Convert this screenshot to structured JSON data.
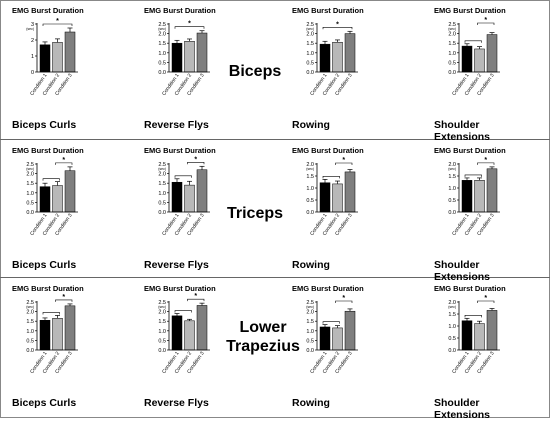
{
  "figure": {
    "panel_title": "EMG Burst Duration",
    "y_unit": "(sec)",
    "condition_labels": [
      "Condition 1",
      "Condition 2",
      "Condition 3"
    ],
    "bar_colors": [
      "#000000",
      "#b8b8b8",
      "#7f7f7f"
    ],
    "rows": [
      {
        "muscle_lines": [
          "Biceps"
        ],
        "panels": [
          {
            "exercise": [
              "Biceps Curls"
            ],
            "ylim": [
              0,
              3
            ],
            "yticks": [
              "0",
              "1",
              "2",
              "3"
            ],
            "values": [
              1.7,
              1.85,
              2.5
            ],
            "errors": [
              0.18,
              0.22,
              0.25
            ],
            "sig": [
              [
                0,
                2
              ]
            ]
          },
          {
            "exercise": [
              "Reverse Flys"
            ],
            "ylim": [
              0,
              2.5
            ],
            "yticks": [
              "0.0",
              "0.5",
              "1.0",
              "1.5",
              "2.0",
              "2.5"
            ],
            "values": [
              1.5,
              1.6,
              2.03
            ],
            "errors": [
              0.15,
              0.12,
              0.12
            ],
            "sig": [
              [
                0,
                2
              ]
            ]
          },
          {
            "exercise": [
              "Rowing"
            ],
            "ylim": [
              0,
              2.5
            ],
            "yticks": [
              "0.0",
              "0.5",
              "1.0",
              "1.5",
              "2.0",
              "2.5"
            ],
            "values": [
              1.45,
              1.55,
              2.0
            ],
            "errors": [
              0.15,
              0.12,
              0.12
            ],
            "sig": [
              [
                0,
                2
              ]
            ]
          },
          {
            "exercise": [
              "Shoulder",
              "Extensions"
            ],
            "ylim": [
              0,
              2.5
            ],
            "yticks": [
              "0.0",
              "0.5",
              "1.0",
              "1.5",
              "2.0",
              "2.5"
            ],
            "values": [
              1.35,
              1.2,
              1.95
            ],
            "errors": [
              0.12,
              0.12,
              0.1
            ],
            "sig": [
              [
                0,
                1
              ],
              [
                1,
                2
              ]
            ]
          }
        ]
      },
      {
        "muscle_lines": [
          "Triceps"
        ],
        "panels": [
          {
            "exercise": [
              "Biceps Curls"
            ],
            "ylim": [
              0,
              2.5
            ],
            "yticks": [
              "0.0",
              "0.5",
              "1.0",
              "1.5",
              "2.0",
              "2.5"
            ],
            "values": [
              1.32,
              1.38,
              2.15
            ],
            "errors": [
              0.18,
              0.2,
              0.2
            ],
            "sig": [
              [
                0,
                1
              ],
              [
                1,
                2
              ]
            ]
          },
          {
            "exercise": [
              "Reverse Flys"
            ],
            "ylim": [
              0,
              2.5
            ],
            "yticks": [
              "0.0",
              "0.5",
              "1.0",
              "1.5",
              "2.0",
              "2.5"
            ],
            "values": [
              1.55,
              1.4,
              2.2
            ],
            "errors": [
              0.18,
              0.2,
              0.18
            ],
            "sig": [
              [
                0,
                1
              ],
              [
                1,
                2
              ]
            ]
          },
          {
            "exercise": [
              "Rowing"
            ],
            "ylim": [
              0,
              2.0
            ],
            "yticks": [
              "0.0",
              "0.5",
              "1.0",
              "1.5",
              "2.0"
            ],
            "values": [
              1.22,
              1.17,
              1.67
            ],
            "errors": [
              0.14,
              0.12,
              0.1
            ],
            "sig": [
              [
                0,
                1
              ],
              [
                1,
                2
              ]
            ]
          },
          {
            "exercise": [
              "Shoulder",
              "Extensions"
            ],
            "ylim": [
              0,
              2.0
            ],
            "yticks": [
              "0.0",
              "0.5",
              "1.0",
              "1.5",
              "2.0"
            ],
            "values": [
              1.32,
              1.32,
              1.8
            ],
            "errors": [
              0.1,
              0.1,
              0.08
            ],
            "sig": [
              [
                0,
                1
              ],
              [
                1,
                2
              ]
            ]
          }
        ]
      },
      {
        "muscle_lines": [
          "Lower",
          "Trapezius"
        ],
        "panels": [
          {
            "exercise": [
              "Biceps Curls"
            ],
            "ylim": [
              0,
              2.5
            ],
            "yticks": [
              "0.0",
              "0.5",
              "1.0",
              "1.5",
              "2.0",
              "2.5"
            ],
            "values": [
              1.55,
              1.65,
              2.3
            ],
            "errors": [
              0.12,
              0.15,
              0.1
            ],
            "sig": [
              [
                0,
                1
              ],
              [
                1,
                2
              ]
            ]
          },
          {
            "exercise": [
              "Reverse Flys"
            ],
            "ylim": [
              0,
              2.5
            ],
            "yticks": [
              "0.0",
              "0.5",
              "1.0",
              "1.5",
              "2.0",
              "2.5"
            ],
            "values": [
              1.78,
              1.52,
              2.32
            ],
            "errors": [
              0.12,
              0.08,
              0.12
            ],
            "sig": [
              [
                0,
                1
              ],
              [
                1,
                2
              ]
            ]
          },
          {
            "exercise": [
              "Rowing"
            ],
            "ylim": [
              0,
              2.5
            ],
            "yticks": [
              "0.0",
              "0.5",
              "1.0",
              "1.5",
              "2.0",
              "2.5"
            ],
            "values": [
              1.2,
              1.15,
              2.02
            ],
            "errors": [
              0.12,
              0.12,
              0.12
            ],
            "sig": [
              [
                0,
                1
              ],
              [
                1,
                2
              ]
            ]
          },
          {
            "exercise": [
              "Shoulder",
              "Extensions"
            ],
            "ylim": [
              0,
              2.0
            ],
            "yticks": [
              "0.0",
              "0.5",
              "1.0",
              "1.5",
              "2.0"
            ],
            "values": [
              1.22,
              1.1,
              1.65
            ],
            "errors": [
              0.1,
              0.1,
              0.08
            ],
            "sig": [
              [
                0,
                1
              ],
              [
                1,
                2
              ]
            ]
          }
        ]
      }
    ]
  },
  "chart_data": [
    {
      "type": "bar",
      "title": "EMG Burst Duration",
      "ylabel": "(sec)",
      "categories": [
        "Condition 1",
        "Condition 2",
        "Condition 3"
      ],
      "values": [
        1.7,
        1.85,
        2.5
      ],
      "ylim": [
        0,
        3
      ]
    },
    {
      "type": "bar",
      "title": "EMG Burst Duration",
      "ylabel": "(sec)",
      "categories": [
        "Condition 1",
        "Condition 2",
        "Condition 3"
      ],
      "values": [
        1.5,
        1.6,
        2.03
      ],
      "ylim": [
        0,
        2.5
      ]
    },
    {
      "type": "bar",
      "title": "EMG Burst Duration",
      "ylabel": "(sec)",
      "categories": [
        "Condition 1",
        "Condition 2",
        "Condition 3"
      ],
      "values": [
        1.45,
        1.55,
        2.0
      ],
      "ylim": [
        0,
        2.5
      ]
    },
    {
      "type": "bar",
      "title": "EMG Burst Duration",
      "ylabel": "(sec)",
      "categories": [
        "Condition 1",
        "Condition 2",
        "Condition 3"
      ],
      "values": [
        1.35,
        1.2,
        1.95
      ],
      "ylim": [
        0,
        2.5
      ]
    },
    {
      "type": "bar",
      "title": "EMG Burst Duration",
      "ylabel": "(sec)",
      "categories": [
        "Condition 1",
        "Condition 2",
        "Condition 3"
      ],
      "values": [
        1.32,
        1.38,
        2.15
      ],
      "ylim": [
        0,
        2.5
      ]
    },
    {
      "type": "bar",
      "title": "EMG Burst Duration",
      "ylabel": "(sec)",
      "categories": [
        "Condition 1",
        "Condition 2",
        "Condition 3"
      ],
      "values": [
        1.55,
        1.4,
        2.2
      ],
      "ylim": [
        0,
        2.5
      ]
    },
    {
      "type": "bar",
      "title": "EMG Burst Duration",
      "ylabel": "(sec)",
      "categories": [
        "Condition 1",
        "Condition 2",
        "Condition 3"
      ],
      "values": [
        1.22,
        1.17,
        1.67
      ],
      "ylim": [
        0,
        2.0
      ]
    },
    {
      "type": "bar",
      "title": "EMG Burst Duration",
      "ylabel": "(sec)",
      "categories": [
        "Condition 1",
        "Condition 2",
        "Condition 3"
      ],
      "values": [
        1.32,
        1.32,
        1.8
      ],
      "ylim": [
        0,
        2.0
      ]
    },
    {
      "type": "bar",
      "title": "EMG Burst Duration",
      "ylabel": "(sec)",
      "categories": [
        "Condition 1",
        "Condition 2",
        "Condition 3"
      ],
      "values": [
        1.55,
        1.65,
        2.3
      ],
      "ylim": [
        0,
        2.5
      ]
    },
    {
      "type": "bar",
      "title": "EMG Burst Duration",
      "ylabel": "(sec)",
      "categories": [
        "Condition 1",
        "Condition 2",
        "Condition 3"
      ],
      "values": [
        1.78,
        1.52,
        2.32
      ],
      "ylim": [
        0,
        2.5
      ]
    },
    {
      "type": "bar",
      "title": "EMG Burst Duration",
      "ylabel": "(sec)",
      "categories": [
        "Condition 1",
        "Condition 2",
        "Condition 3"
      ],
      "values": [
        1.2,
        1.15,
        2.02
      ],
      "ylim": [
        0,
        2.5
      ]
    },
    {
      "type": "bar",
      "title": "EMG Burst Duration",
      "ylabel": "(sec)",
      "categories": [
        "Condition 1",
        "Condition 2",
        "Condition 3"
      ],
      "values": [
        1.22,
        1.1,
        1.65
      ],
      "ylim": [
        0,
        2.0
      ]
    }
  ]
}
